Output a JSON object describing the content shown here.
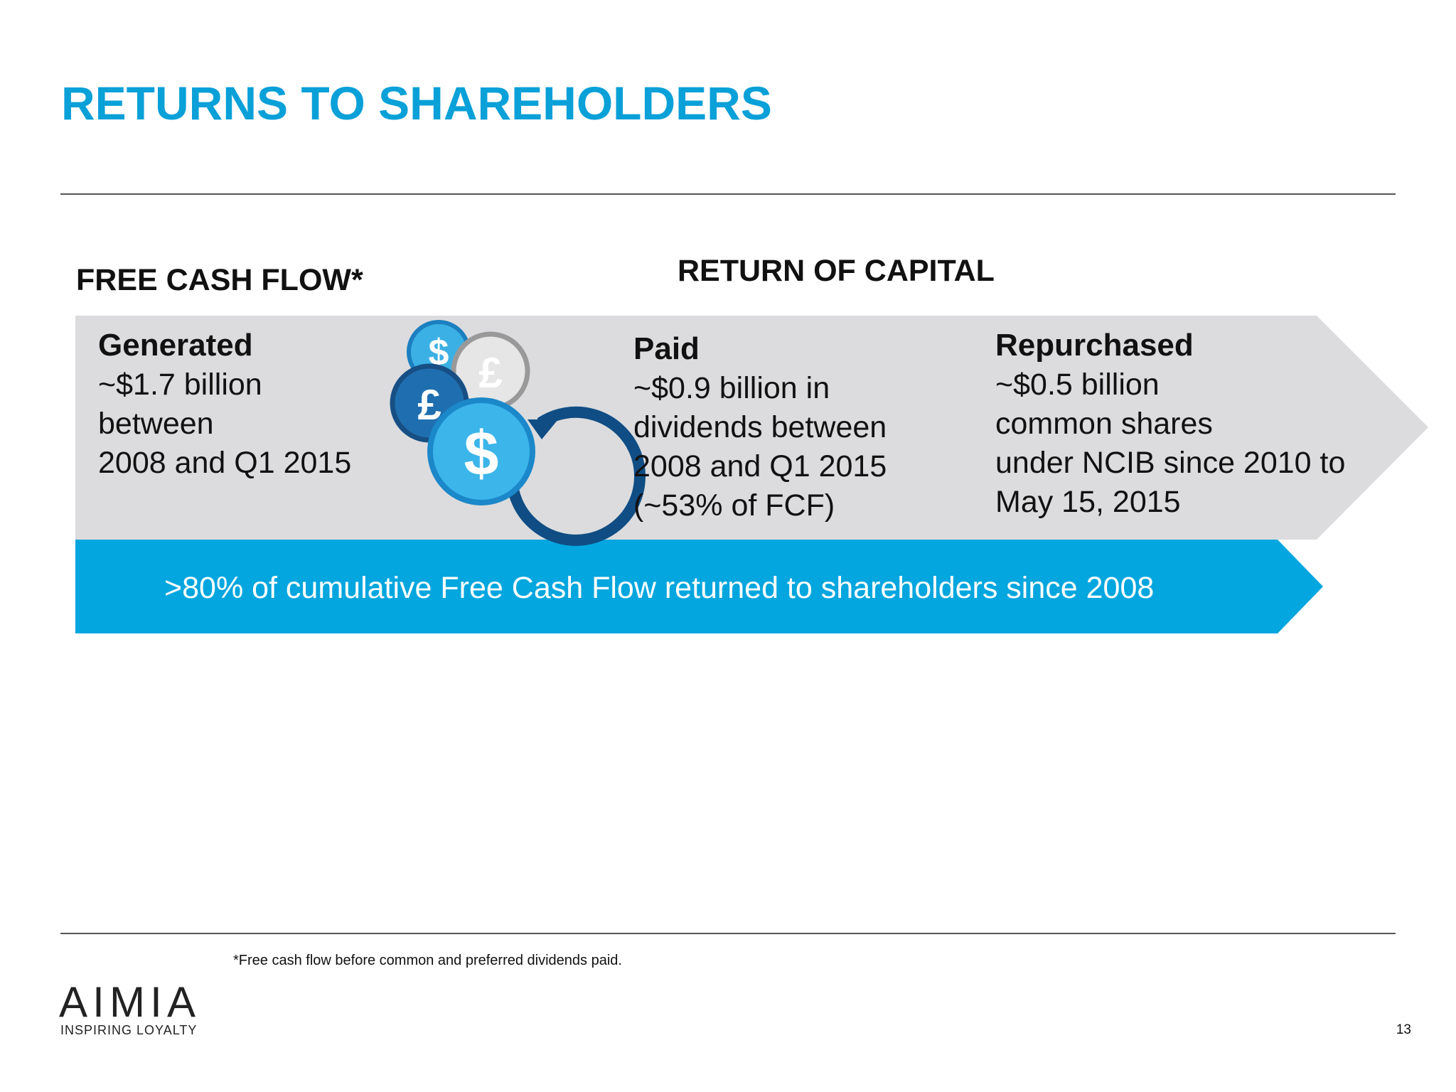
{
  "title": "RETURNS TO SHAREHOLDERS",
  "sections": {
    "free_cash_flow": "FREE CASH FLOW*",
    "return_of_capital": "RETURN OF CAPITAL"
  },
  "panels": [
    {
      "heading": "Generated",
      "lines": [
        "~$1.7 billion",
        "between",
        "2008 and Q1 2015"
      ]
    },
    {
      "heading": "Paid",
      "lines": [
        "~$0.9 billion in",
        "dividends between",
        "2008 and Q1 2015",
        "(~53% of FCF)"
      ]
    },
    {
      "heading": "Repurchased",
      "lines": [
        "~$0.5 billion",
        "common shares",
        "under NCIB since 2010 to",
        "May 15, 2015"
      ]
    }
  ],
  "banner": ">80% of cumulative Free Cash Flow returned to shareholders since 2008",
  "footnote": "*Free cash flow before common and preferred dividends paid.",
  "logo": {
    "name": "AIMIA",
    "tagline": "INSPIRING LOYALTY"
  },
  "page_number": "13"
}
